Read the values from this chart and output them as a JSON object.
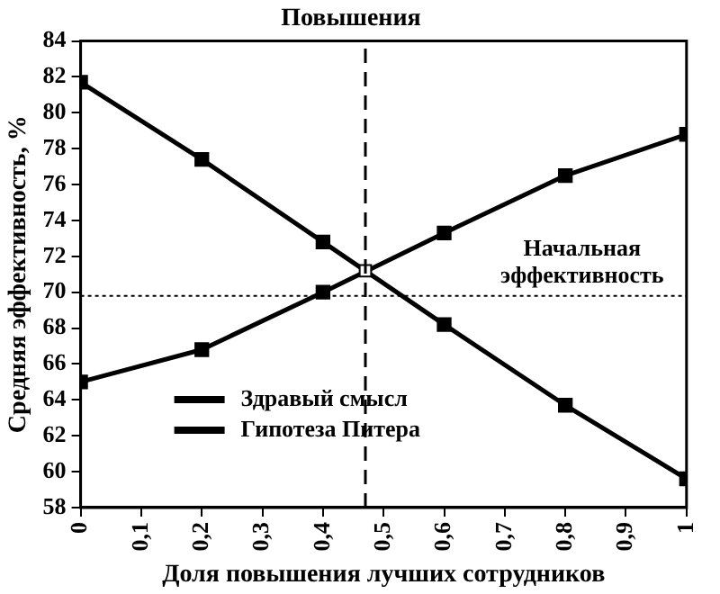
{
  "chart_data": {
    "type": "line",
    "title": "Повышения",
    "xlabel": "Доля повышения лучших сотрудников",
    "ylabel": "Средняя эффективность, %",
    "x": [
      0,
      0.2,
      0.4,
      0.6,
      0.8,
      1
    ],
    "series": [
      {
        "name": "Здравый смысл",
        "color": "#000000",
        "values": [
          65,
          66.8,
          70,
          73.3,
          76.5,
          78.8
        ]
      },
      {
        "name": "Гипотеза Питера",
        "color": "#000000",
        "values": [
          81.7,
          77.4,
          72.8,
          68.2,
          63.7,
          59.6
        ]
      },
      {
        "type": "scatter",
        "color": "#ffffff",
        "x": [
          0.47
        ],
        "values": [
          71.2
        ]
      }
    ],
    "xlim": [
      0,
      1
    ],
    "xticks": [
      0,
      {
        "value": 0.1,
        "label": "0,1"
      },
      {
        "value": 0.2,
        "label": "0,2"
      },
      {
        "value": 0.3,
        "label": "0,3"
      },
      {
        "value": 0.4,
        "label": "0,4"
      },
      {
        "value": 0.5,
        "label": "0,5"
      },
      {
        "value": 0.6,
        "label": "0,6"
      },
      {
        "value": 0.7,
        "label": "0,7"
      },
      {
        "value": 0.8,
        "label": "0,8"
      },
      {
        "value": 0.9,
        "label": "0,9"
      },
      1
    ],
    "ylim": [
      58,
      84
    ],
    "yticks": [
      58,
      60,
      62,
      64,
      66,
      68,
      70,
      72,
      74,
      76,
      78,
      80,
      82,
      84
    ],
    "ref_lines": [
      {
        "axis": "y",
        "value": 69.8,
        "label": "Начальная эффективность",
        "line_style": "dotted"
      },
      {
        "axis": "x",
        "value": 0.47,
        "label": null,
        "line_style": "dashed"
      }
    ],
    "marker": "square",
    "line_style": "solid",
    "grid": false,
    "legend": "bottom left"
  }
}
